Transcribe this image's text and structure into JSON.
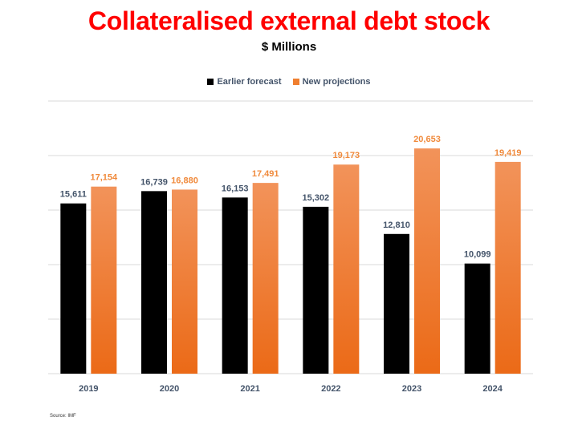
{
  "title": "Collateralised external debt stock",
  "subtitle": "$ Millions",
  "source": "Source: IMF",
  "colors": {
    "title": "#ff0000",
    "earlier": "#000000",
    "new_top": "#f2935a",
    "new_bottom": "#eb6a17",
    "label_earlier": "#44546a",
    "label_new": "#f08a3c",
    "grid": "#d9d9d9",
    "axis_text": "#44546a"
  },
  "chart_data": {
    "type": "bar",
    "categories": [
      "2019",
      "2020",
      "2021",
      "2022",
      "2023",
      "2024"
    ],
    "series": [
      {
        "name": "Earlier forecast",
        "values": [
          15611,
          16739,
          16153,
          15302,
          12810,
          10099
        ]
      },
      {
        "name": "New projections",
        "values": [
          17154,
          16880,
          17491,
          19173,
          20653,
          19419
        ]
      }
    ],
    "value_labels": {
      "earlier": [
        "15,611",
        "16,739",
        "16,153",
        "15,302",
        "12,810",
        "10,099"
      ],
      "new": [
        "17,154",
        "16,880",
        "17,491",
        "19,173",
        "20,653",
        "19,419"
      ]
    },
    "ylim": [
      0,
      25000
    ],
    "grid": true,
    "legend_position": "top-center"
  }
}
